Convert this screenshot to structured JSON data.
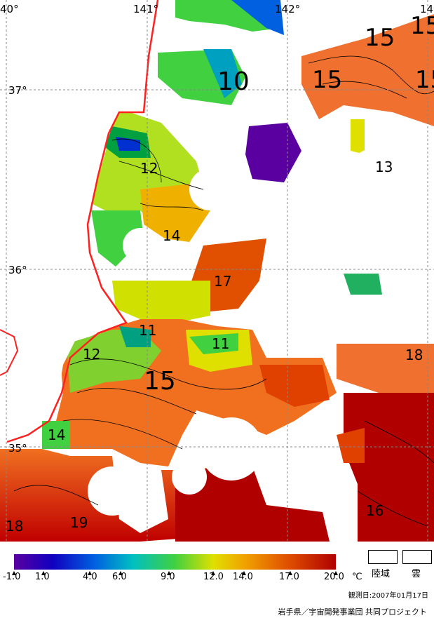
{
  "map": {
    "lon_labels": [
      "40°",
      "141°",
      "142°",
      "14"
    ],
    "lat_labels": [
      "37°",
      "36°",
      "35°"
    ],
    "contour_labels": [
      "15",
      "15",
      "15",
      "15",
      "10",
      "12",
      "13",
      "14",
      "17",
      "11",
      "11",
      "12",
      "15",
      "18",
      "14",
      "16",
      "18",
      "19"
    ]
  },
  "legend": {
    "ticks": [
      "-1.0",
      "1.0",
      "4.0",
      "6.0",
      "9.0",
      "12.0",
      "14.0",
      "17.0",
      "20.0"
    ],
    "unit": "℃",
    "land_label": "陸域",
    "cloud_label": "雲",
    "colors": [
      "#5a00a0",
      "#1000c0",
      "#0060e0",
      "#00c0c0",
      "#40d040",
      "#e0e000",
      "#f0a000",
      "#e05000",
      "#b00000"
    ]
  },
  "footer": {
    "obs_date": "観測日:2007年01月17日",
    "credit": "岩手県／宇宙開発事業団 共同プロジェクト"
  }
}
